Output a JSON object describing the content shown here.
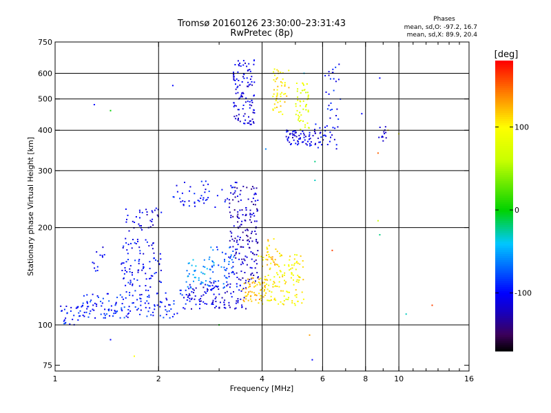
{
  "title": {
    "line1": "Tromsø 20160126 23:30:00–23:31:43",
    "line2": "RwPretec (8p)"
  },
  "stats": {
    "heading": "Phases",
    "line1": "mean, sd,O: -97.2, 16.7",
    "line2": "mean, sd,X:  89.9, 20.4"
  },
  "colorbar": {
    "unit": "[deg]",
    "tick_labels": [
      "100",
      "0",
      "-100"
    ],
    "tick_values": [
      100,
      0,
      -100
    ],
    "range": [
      -170,
      180
    ]
  },
  "chart_data": {
    "type": "scatter",
    "xlabel": "Frequency [MHz]",
    "ylabel": "Stationary phase Virtual Height [km]",
    "x_scale": "log",
    "y_scale": "log",
    "xlim": [
      1,
      16
    ],
    "ylim": [
      72,
      750
    ],
    "x_ticks": [
      1,
      2,
      4,
      6,
      8,
      10,
      16
    ],
    "x_tick_labels": [
      "1",
      "2",
      "4",
      "6",
      "8",
      "10",
      "16"
    ],
    "y_ticks": [
      75,
      100,
      200,
      300,
      400,
      500,
      600,
      750
    ],
    "y_tick_labels": [
      "75",
      "100",
      "200",
      "300",
      "400",
      "500",
      "600",
      "750"
    ],
    "grid": true,
    "grid_x": [
      2,
      4,
      6,
      8,
      10
    ],
    "grid_y": [
      100,
      200,
      300,
      400,
      500,
      600
    ],
    "color_encodes": "phase [deg]",
    "clusters": [
      {
        "x": [
          1.03,
          1.2
        ],
        "y": [
          100,
          115
        ],
        "phase": -95,
        "count": 30
      },
      {
        "x": [
          1.2,
          1.6
        ],
        "y": [
          105,
          125
        ],
        "phase": -90,
        "count": 70
      },
      {
        "x": [
          1.6,
          2.4
        ],
        "y": [
          105,
          128
        ],
        "phase": -95,
        "count": 80
      },
      {
        "x": [
          2.4,
          3.6
        ],
        "y": [
          112,
          135
        ],
        "phase": -110,
        "count": 110
      },
      {
        "x": [
          1.25,
          1.45
        ],
        "y": [
          145,
          175
        ],
        "phase": -100,
        "count": 12
      },
      {
        "x": [
          1.55,
          2.05
        ],
        "y": [
          130,
          185
        ],
        "phase": -100,
        "count": 90
      },
      {
        "x": [
          1.6,
          2.05
        ],
        "y": [
          195,
          230
        ],
        "phase": -110,
        "count": 25
      },
      {
        "x": [
          1.75,
          2.05
        ],
        "y": [
          222,
          230
        ],
        "phase": -100,
        "count": 10
      },
      {
        "x": [
          2.2,
          3.4
        ],
        "y": [
          230,
          280
        ],
        "phase": -100,
        "count": 50
      },
      {
        "x": [
          2.4,
          2.9
        ],
        "y": [
          130,
          160
        ],
        "phase": -50,
        "count": 40
      },
      {
        "x": [
          2.8,
          3.4
        ],
        "y": [
          130,
          175
        ],
        "phase": -75,
        "count": 50
      },
      {
        "x": [
          3.2,
          3.9
        ],
        "y": [
          135,
          270
        ],
        "phase": -120,
        "count": 170
      },
      {
        "x": [
          3.3,
          3.8
        ],
        "y": [
          410,
          660
        ],
        "phase": -110,
        "count": 110
      },
      {
        "x": [
          3.5,
          4.1
        ],
        "y": [
          118,
          140
        ],
        "phase": 125,
        "count": 60
      },
      {
        "x": [
          3.9,
          5.3
        ],
        "y": [
          115,
          165
        ],
        "phase": 100,
        "count": 130
      },
      {
        "x": [
          4.1,
          4.5
        ],
        "y": [
          150,
          185
        ],
        "phase": 120,
        "count": 25
      },
      {
        "x": [
          4.3,
          4.8
        ],
        "y": [
          440,
          620
        ],
        "phase": 105,
        "count": 50
      },
      {
        "x": [
          4.7,
          5.5
        ],
        "y": [
          360,
          400
        ],
        "phase": -110,
        "count": 50
      },
      {
        "x": [
          5.0,
          5.5
        ],
        "y": [
          400,
          560
        ],
        "phase": 80,
        "count": 50
      },
      {
        "x": [
          5.5,
          6.6
        ],
        "y": [
          350,
          420
        ],
        "phase": -105,
        "count": 40
      },
      {
        "x": [
          6.1,
          6.8
        ],
        "y": [
          400,
          640
        ],
        "phase": -100,
        "count": 25
      },
      {
        "x": [
          8.7,
          9.3
        ],
        "y": [
          370,
          410
        ],
        "phase": -110,
        "count": 12
      }
    ],
    "outliers": [
      {
        "x": 1.3,
        "y": 480,
        "phase": -100
      },
      {
        "x": 1.45,
        "y": 460,
        "phase": 0
      },
      {
        "x": 2.2,
        "y": 550,
        "phase": -100
      },
      {
        "x": 1.7,
        "y": 80,
        "phase": 100
      },
      {
        "x": 1.45,
        "y": 90,
        "phase": -100
      },
      {
        "x": 3.0,
        "y": 100,
        "phase": 0
      },
      {
        "x": 4.7,
        "y": 120,
        "phase": 60
      },
      {
        "x": 5.5,
        "y": 93,
        "phase": 130
      },
      {
        "x": 5.6,
        "y": 78,
        "phase": -100
      },
      {
        "x": 10.5,
        "y": 108,
        "phase": -30
      },
      {
        "x": 12.5,
        "y": 115,
        "phase": 160
      },
      {
        "x": 6.4,
        "y": 170,
        "phase": 160
      },
      {
        "x": 8.8,
        "y": 190,
        "phase": -20
      },
      {
        "x": 8.7,
        "y": 210,
        "phase": 60
      },
      {
        "x": 8.7,
        "y": 340,
        "phase": 150
      },
      {
        "x": 9.3,
        "y": 400,
        "phase": 110
      },
      {
        "x": 10.0,
        "y": 390,
        "phase": 100
      },
      {
        "x": 6.7,
        "y": 640,
        "phase": -110
      },
      {
        "x": 8.8,
        "y": 580,
        "phase": -100
      },
      {
        "x": 7.8,
        "y": 450,
        "phase": -100
      },
      {
        "x": 5.7,
        "y": 320,
        "phase": -20
      },
      {
        "x": 5.7,
        "y": 280,
        "phase": -30
      },
      {
        "x": 5.3,
        "y": 600,
        "phase": -40
      },
      {
        "x": 4.1,
        "y": 350,
        "phase": -60
      }
    ]
  }
}
